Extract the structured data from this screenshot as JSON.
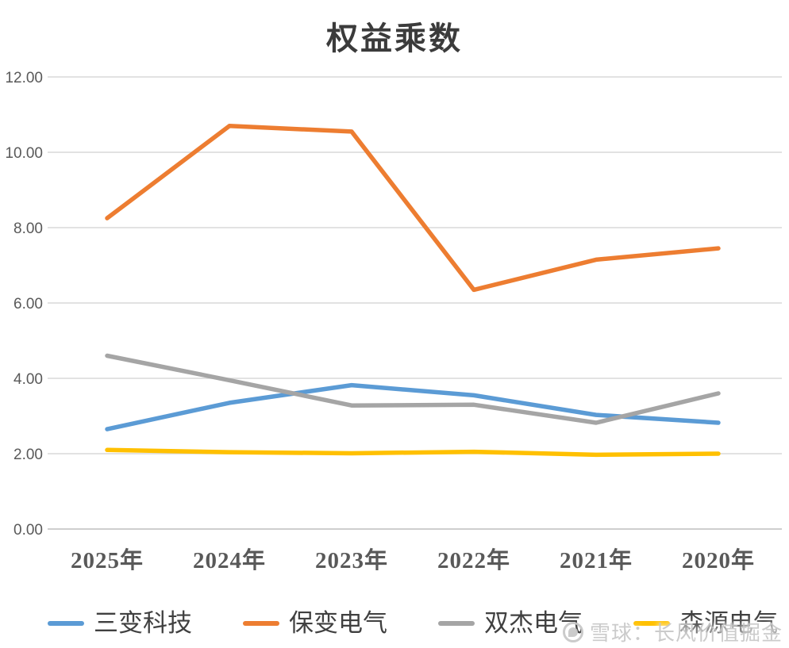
{
  "title": "权益乘数",
  "chart_data": {
    "type": "line",
    "title": "权益乘数",
    "categories": [
      "2025年",
      "2024年",
      "2023年",
      "2022年",
      "2021年",
      "2020年"
    ],
    "series": [
      {
        "name": "三变科技",
        "color": "#5B9BD5",
        "values": [
          2.65,
          3.35,
          3.82,
          3.55,
          3.03,
          2.82
        ]
      },
      {
        "name": "保变电气",
        "color": "#ED7D31",
        "values": [
          8.25,
          10.7,
          10.55,
          6.35,
          7.15,
          7.45
        ]
      },
      {
        "name": "双杰电气",
        "color": "#A5A5A5",
        "values": [
          4.6,
          3.95,
          3.28,
          3.3,
          2.82,
          3.6
        ]
      },
      {
        "name": "森源电气",
        "color": "#FFC000",
        "values": [
          2.1,
          2.04,
          2.01,
          2.05,
          1.97,
          2.0
        ]
      }
    ],
    "xlabel": "",
    "ylabel": "",
    "ylim": [
      0,
      12
    ],
    "ytick_step": 2,
    "ytick_labels": [
      "0.00",
      "2.00",
      "4.00",
      "6.00",
      "8.00",
      "10.00",
      "12.00"
    ],
    "grid": true,
    "legend_position": "bottom",
    "colors": {
      "gridline": "#d9d9d9",
      "baseline": "#bfbfbf",
      "tick_text": "#595959"
    }
  },
  "watermark": {
    "text": "雪球：长风价值掘金"
  }
}
